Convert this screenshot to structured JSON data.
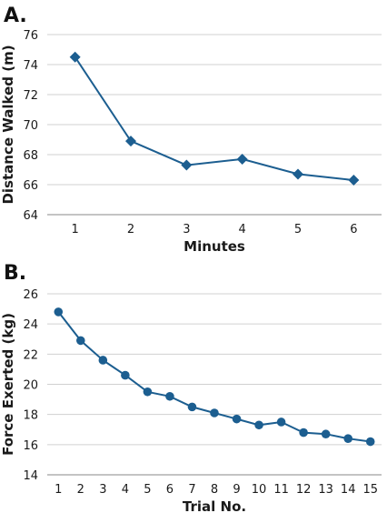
{
  "colors": {
    "series": "#1c5e90",
    "grid": "#d0d0d0",
    "axis": "#8a8a8a",
    "text": "#1a1a1a",
    "panel_label": "#111111"
  },
  "chart_data": [
    {
      "panel_label": "A.",
      "type": "line",
      "marker": "diamond",
      "x": [
        1,
        2,
        3,
        4,
        5,
        6
      ],
      "series": [
        {
          "values": [
            74.5,
            68.9,
            67.3,
            67.7,
            66.7,
            66.3
          ]
        }
      ],
      "xlabel": "Minutes",
      "ylabel": "Distance Walked (m)",
      "ylim": [
        64,
        76
      ],
      "yticks": [
        64,
        66,
        68,
        70,
        72,
        74,
        76
      ],
      "xticks": [
        1,
        2,
        3,
        4,
        5,
        6
      ],
      "grid": "horizontal"
    },
    {
      "panel_label": "B.",
      "type": "line",
      "marker": "circle",
      "x": [
        1,
        2,
        3,
        4,
        5,
        6,
        7,
        8,
        9,
        10,
        11,
        12,
        13,
        14,
        15
      ],
      "series": [
        {
          "values": [
            24.8,
            22.9,
            21.6,
            20.6,
            19.5,
            19.2,
            18.5,
            18.1,
            17.7,
            17.3,
            17.5,
            16.8,
            16.7,
            16.4,
            16.2
          ]
        }
      ],
      "xlabel": "Trial No.",
      "ylabel": "Force Exerted (kg)",
      "ylim": [
        14,
        26
      ],
      "yticks": [
        14,
        16,
        18,
        20,
        22,
        24,
        26
      ],
      "xticks": [
        1,
        2,
        3,
        4,
        5,
        6,
        7,
        8,
        9,
        10,
        11,
        12,
        13,
        14,
        15
      ],
      "grid": "horizontal"
    }
  ]
}
